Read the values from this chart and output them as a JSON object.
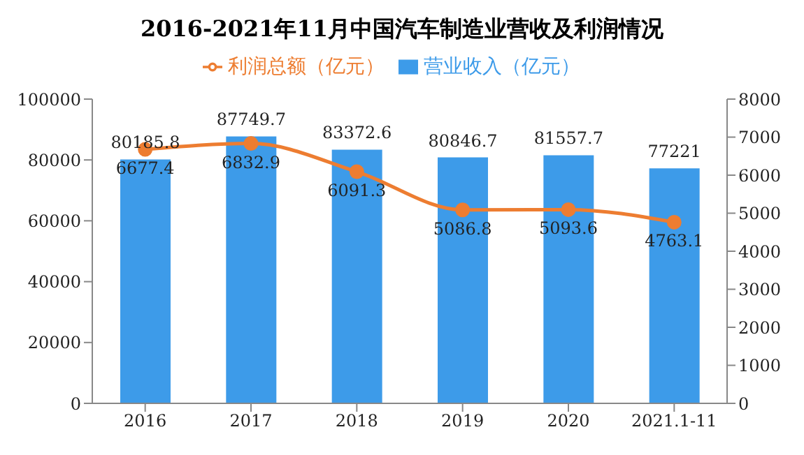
{
  "chart_data": {
    "type": "bar",
    "title": "2016-2021年11月中国汽车制造业营收及利润情况",
    "categories": [
      "2016",
      "2017",
      "2018",
      "2019",
      "2020",
      "2021.1-11"
    ],
    "series": [
      {
        "name": "营业收入（亿元）",
        "color": "#3d9be9",
        "values": [
          80185.8,
          87749.7,
          83372.6,
          80846.7,
          81557.7,
          77221
        ]
      },
      {
        "name": "利润总额（亿元）",
        "type": "line",
        "axis": "y2",
        "color": "#ed7d31",
        "marker": "circle",
        "values": [
          6677.4,
          6832.9,
          6091.3,
          5086.8,
          5093.6,
          4763.1
        ]
      }
    ],
    "ylim": [
      0,
      100000
    ],
    "yticks": [
      0,
      20000,
      40000,
      60000,
      80000,
      100000
    ],
    "y2lim": [
      0,
      8000
    ],
    "y2ticks": [
      0,
      1000,
      2000,
      3000,
      4000,
      5000,
      6000,
      7000,
      8000
    ],
    "data_labels": true,
    "legend": "top",
    "grid": false
  }
}
